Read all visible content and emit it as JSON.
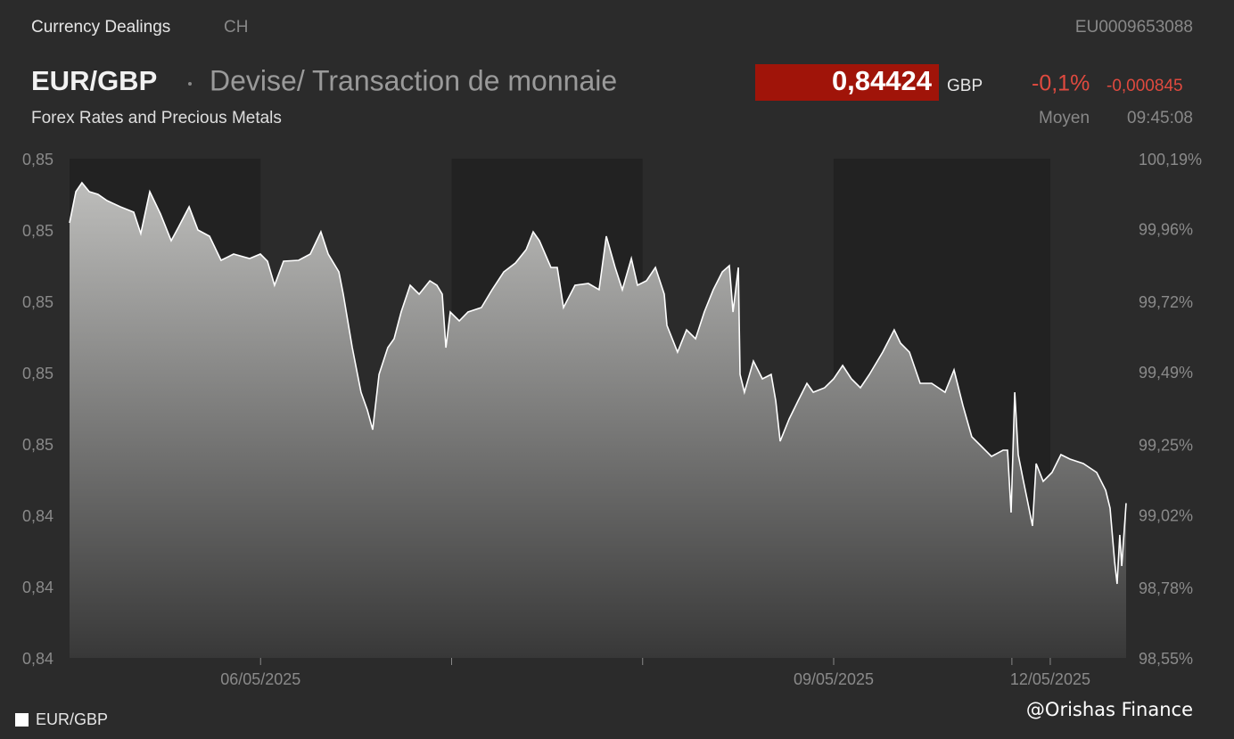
{
  "header": {
    "section": "Currency Dealings",
    "market": "CH",
    "isin": "EU0009653088",
    "symbol": "EUR/GBP",
    "description": "Devise/ Transaction de monnaie",
    "category": "Forex Rates and Precious Metals",
    "price": "0,84424",
    "currency": "GBP",
    "change_pct": "-0,1%",
    "change_abs": "-0,000845",
    "price_type": "Moyen",
    "time": "09:45:08"
  },
  "watermark": "@Orishas Finance",
  "chart_data": {
    "type": "area",
    "x": [
      0,
      0.033,
      0.065,
      0.103,
      0.149,
      0.196,
      0.266,
      0.336,
      0.373,
      0.42,
      0.476,
      0.532,
      0.57,
      0.626,
      0.672,
      0.733,
      0.793,
      0.859,
      0.943,
      0.999,
      1.036,
      1.073,
      1.12,
      1.199,
      1.26,
      1.316,
      1.354,
      1.41,
      1.433,
      1.48,
      1.526,
      1.559,
      1.587,
      1.62,
      1.666,
      1.699,
      1.736,
      1.783,
      1.83,
      1.886,
      1.923,
      1.951,
      1.97,
      1.993,
      2.04,
      2.086,
      2.156,
      2.212,
      2.273,
      2.334,
      2.39,
      2.427,
      2.46,
      2.52,
      2.553,
      2.586,
      2.646,
      2.716,
      2.772,
      2.81,
      2.856,
      2.894,
      2.941,
      2.973,
      3.02,
      3.067,
      3.113,
      3.127,
      3.183,
      3.23,
      3.277,
      3.323,
      3.37,
      3.417,
      3.454,
      3.473,
      3.501,
      3.51,
      3.533,
      3.58,
      3.627,
      3.673,
      3.697,
      3.72,
      3.767,
      3.813,
      3.86,
      3.893,
      3.953,
      4,
      4.047,
      4.093,
      4.14,
      4.187,
      4.257,
      4.317,
      4.35,
      4.397,
      4.453,
      4.513,
      4.583,
      4.63,
      4.677,
      4.723,
      4.77,
      4.826,
      4.887,
      4.91,
      4.929,
      4.948,
      4.966,
      4.994,
      5.013,
      5.041,
      5.06,
      5.097,
      5.143,
      5.19,
      5.237,
      5.307,
      5.377,
      5.424,
      5.447,
      5.471,
      5.484,
      5.498,
      5.508,
      5.531
    ],
    "series": [
      {
        "name": "EUR/GBP",
        "color": "#ffffff",
        "values": [
          0.8521,
          0.852975,
          0.853225,
          0.852975,
          0.8529,
          0.852725,
          0.85255,
          0.8524,
          0.8518,
          0.852975,
          0.85235,
          0.8516,
          0.851975,
          0.85255,
          0.8519,
          0.851725,
          0.85105,
          0.851225,
          0.8511,
          0.851225,
          0.851025,
          0.85035,
          0.851025,
          0.85105,
          0.851225,
          0.85185,
          0.851225,
          0.850725,
          0.8501,
          0.8486,
          0.84735,
          0.84685,
          0.8463,
          0.84785,
          0.8486,
          0.84885,
          0.8496,
          0.85035,
          0.8501,
          0.850475,
          0.85035,
          0.8501,
          0.8486,
          0.8496,
          0.84935,
          0.8496,
          0.849725,
          0.850225,
          0.850725,
          0.850975,
          0.85135,
          0.85185,
          0.8516,
          0.85085,
          0.85085,
          0.849725,
          0.85035,
          0.8504,
          0.850225,
          0.851725,
          0.85085,
          0.850225,
          0.8511,
          0.85035,
          0.850475,
          0.85085,
          0.8501,
          0.849225,
          0.848475,
          0.8491,
          0.84885,
          0.8496,
          0.850225,
          0.850725,
          0.8509,
          0.8496,
          0.85085,
          0.84785,
          0.84735,
          0.848225,
          0.847725,
          0.84785,
          0.8471,
          0.845975,
          0.8466,
          0.8471,
          0.8476,
          0.84735,
          0.847475,
          0.847725,
          0.8481,
          0.847725,
          0.847475,
          0.84785,
          0.848475,
          0.8491,
          0.848725,
          0.848475,
          0.8476,
          0.8476,
          0.84735,
          0.847975,
          0.846975,
          0.8461,
          0.84585,
          0.84555,
          0.845725,
          0.845725,
          0.843975,
          0.84735,
          0.8456,
          0.84485,
          0.84435,
          0.8436,
          0.84535,
          0.84485,
          0.8451,
          0.8456,
          0.845475,
          0.84535,
          0.8451,
          0.8446,
          0.8441,
          0.8426,
          0.841975,
          0.84335,
          0.842475,
          0.84424
        ]
      }
    ],
    "xlim": [
      0,
      5.531
    ],
    "xticks": [
      {
        "value": 1,
        "label": "06/05/2025"
      },
      {
        "value": 2,
        "label": null
      },
      {
        "value": 3,
        "label": null
      },
      {
        "value": 4,
        "label": "09/05/2025"
      },
      {
        "value": 4.933,
        "label": null
      },
      {
        "value": 5.134,
        "label": "12/05/2025"
      }
    ],
    "ylim": [
      0.8399,
      0.8539
    ],
    "yticks": [
      {
        "value": 0.8399,
        "label": "0,84"
      },
      {
        "value": 0.8419,
        "label": "0,84"
      },
      {
        "value": 0.8439,
        "label": "0,84"
      },
      {
        "value": 0.8459,
        "label": "0,85"
      },
      {
        "value": 0.8479,
        "label": "0,85"
      },
      {
        "value": 0.8499,
        "label": "0,85"
      },
      {
        "value": 0.8519,
        "label": "0,85"
      },
      {
        "value": 0.8539,
        "label": "0,85"
      }
    ],
    "y2lim": [
      98.55,
      100.19
    ],
    "y2ticks": [
      {
        "value": 98.55,
        "label": "98,55%"
      },
      {
        "value": 98.78,
        "label": "98,78%"
      },
      {
        "value": 99.02,
        "label": "99,02%"
      },
      {
        "value": 99.25,
        "label": "99,25%"
      },
      {
        "value": 99.49,
        "label": "99,49%"
      },
      {
        "value": 99.72,
        "label": "99,72%"
      },
      {
        "value": 99.96,
        "label": "99,96%"
      },
      {
        "value": 100.19,
        "label": "100,19%"
      }
    ],
    "grid": false,
    "legend": "bottom-left"
  }
}
